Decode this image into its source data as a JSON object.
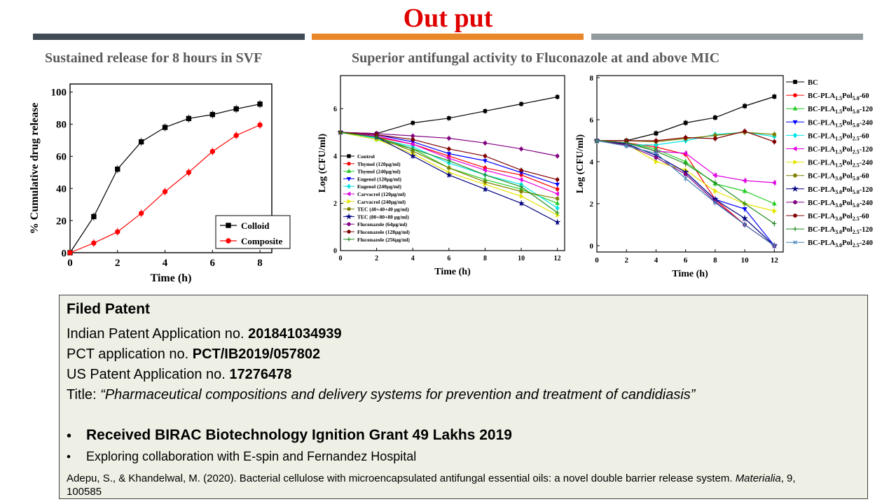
{
  "header": {
    "title": "Out put",
    "title_color": "#e00000",
    "bars": [
      "#404b55",
      "#e8872a",
      "#939a9e"
    ],
    "left_subtitle": "Sustained release for 8 hours in SVF",
    "right_subtitle": "Superior antifungal activity to Fluconazole at and above MIC"
  },
  "chart_data": [
    {
      "type": "line",
      "title": "",
      "xlabel": "Time (h)",
      "ylabel": "% Cumulative drug release",
      "xlim": [
        0,
        8.5
      ],
      "ylim": [
        0,
        105
      ],
      "xticks": [
        "0",
        "2",
        "4",
        "6",
        "8"
      ],
      "yticks": [
        "0",
        "20",
        "40",
        "60",
        "80",
        "100"
      ],
      "legend_position": "bottom-right",
      "series": [
        {
          "name": "Colloid",
          "color": "#000000",
          "marker": "square",
          "x": [
            0,
            1,
            2,
            3,
            4,
            5,
            6,
            7,
            8
          ],
          "y": [
            0,
            22.5,
            52,
            69,
            78,
            83.5,
            86,
            89.5,
            92.5
          ]
        },
        {
          "name": "Composite",
          "color": "#ff0000",
          "marker": "circle",
          "x": [
            0,
            1,
            2,
            3,
            4,
            5,
            6,
            7,
            8
          ],
          "y": [
            0,
            6,
            13,
            24.5,
            38,
            50,
            63,
            73,
            79.5
          ]
        }
      ]
    },
    {
      "type": "line",
      "title": "",
      "xlabel": "Time (h)",
      "ylabel": "Log (CFU/ml)",
      "xlim": [
        0,
        12.4
      ],
      "ylim": [
        0,
        7.4
      ],
      "xticks": [
        "0",
        "2",
        "4",
        "6",
        "8",
        "10",
        "12"
      ],
      "yticks": [
        "0",
        "2",
        "4",
        "6"
      ],
      "legend_position": "bottom-left",
      "series": [
        {
          "name": "Control",
          "color": "#000000",
          "marker": "square",
          "x": [
            0,
            2,
            4,
            6,
            8,
            10,
            12
          ],
          "y": [
            5,
            4.95,
            5.4,
            5.6,
            5.9,
            6.2,
            6.5
          ]
        },
        {
          "name": "Thymol (120µg/ml)",
          "color": "#ff0000",
          "marker": "circle",
          "x": [
            0,
            2,
            4,
            6,
            8,
            10,
            12
          ],
          "y": [
            5,
            4.8,
            4.5,
            4.0,
            3.5,
            3.2,
            2.6
          ]
        },
        {
          "name": "Thymol (240µg/ml)",
          "color": "#22cc22",
          "marker": "triangle",
          "x": [
            0,
            2,
            4,
            6,
            8,
            10,
            12
          ],
          "y": [
            5,
            4.7,
            4.3,
            3.5,
            3.0,
            2.6,
            2.0
          ]
        },
        {
          "name": "Eugenol (120µg/ml)",
          "color": "#0000ff",
          "marker": "triangle-down",
          "x": [
            0,
            2,
            4,
            6,
            8,
            10,
            12
          ],
          "y": [
            5,
            4.9,
            4.6,
            4.1,
            3.8,
            3.3,
            2.8
          ]
        },
        {
          "name": "Eugenol (240µg/ml)",
          "color": "#00e5e5",
          "marker": "diamond",
          "x": [
            0,
            2,
            4,
            6,
            8,
            10,
            12
          ],
          "y": [
            5,
            4.75,
            4.4,
            3.7,
            3.2,
            2.8,
            1.8
          ]
        },
        {
          "name": "Carvacrol (120µg/ml)",
          "color": "#e000e0",
          "marker": "triangle-left",
          "x": [
            0,
            2,
            4,
            6,
            8,
            10,
            12
          ],
          "y": [
            5,
            4.85,
            4.5,
            3.9,
            3.4,
            3.0,
            2.4
          ]
        },
        {
          "name": "Carvacrol (240µg/ml)",
          "color": "#e5e500",
          "marker": "triangle-right",
          "x": [
            0,
            2,
            4,
            6,
            8,
            10,
            12
          ],
          "y": [
            5,
            4.7,
            4.1,
            3.3,
            2.8,
            2.3,
            1.5
          ]
        },
        {
          "name": "TEC (40+40+40 µg/ml)",
          "color": "#808000",
          "marker": "circle",
          "x": [
            0,
            2,
            4,
            6,
            8,
            10,
            12
          ],
          "y": [
            5,
            4.8,
            4.2,
            3.5,
            2.9,
            2.5,
            2.2
          ]
        },
        {
          "name": "TEC (80+80+80 µg/ml)",
          "color": "#000080",
          "marker": "star",
          "x": [
            0,
            2,
            4,
            6,
            8,
            10,
            12
          ],
          "y": [
            5,
            4.8,
            4.0,
            3.2,
            2.6,
            2.0,
            1.2
          ]
        },
        {
          "name": "Fluconazole (64µg/ml)",
          "color": "#800080",
          "marker": "circle",
          "x": [
            0,
            2,
            4,
            6,
            8,
            10,
            12
          ],
          "y": [
            5,
            4.95,
            4.85,
            4.75,
            4.55,
            4.3,
            4.0
          ]
        },
        {
          "name": "Fluconazole (128µg/ml)",
          "color": "#800000",
          "marker": "circle",
          "x": [
            0,
            2,
            4,
            6,
            8,
            10,
            12
          ],
          "y": [
            5,
            4.9,
            4.7,
            4.3,
            4.0,
            3.4,
            3.0
          ]
        },
        {
          "name": "Fluconazole (256µg/ml)",
          "color": "#228b22",
          "marker": "plus",
          "x": [
            0,
            2,
            4,
            6,
            8,
            10,
            12
          ],
          "y": [
            5,
            4.8,
            4.3,
            3.8,
            3.2,
            2.7,
            1.6
          ]
        }
      ]
    },
    {
      "type": "line",
      "title": "",
      "xlabel": "Time (h)",
      "ylabel": "Log (CFU/ml)",
      "xlim": [
        0,
        12.6
      ],
      "ylim": [
        -0.3,
        8.1
      ],
      "xticks": [
        "0",
        "2",
        "4",
        "6",
        "8",
        "10",
        "12"
      ],
      "yticks": [
        "0",
        "2",
        "4",
        "6",
        "8"
      ],
      "legend_position": "right",
      "series": [
        {
          "name": "BC",
          "color": "#000000",
          "marker": "square",
          "x": [
            0,
            2,
            4,
            6,
            8,
            10,
            12
          ],
          "y": [
            5,
            5.0,
            5.35,
            5.85,
            6.1,
            6.65,
            7.1
          ]
        },
        {
          "name": "BC-PLA",
          "sub1": "1.5",
          "mid": "Pol",
          "sub2": "5.0",
          "suffix": "-60",
          "color": "#ff0000",
          "marker": "circle",
          "x": [
            0,
            2,
            4,
            6,
            8,
            10,
            12
          ],
          "y": [
            5,
            4.9,
            4.7,
            4.35,
            2.2,
            1.0,
            0
          ]
        },
        {
          "name": "BC-PLA",
          "sub1": "1.5",
          "mid": "Pol",
          "sub2": "5.0",
          "suffix": "-120",
          "color": "#22cc22",
          "marker": "triangle",
          "x": [
            0,
            2,
            4,
            6,
            8,
            10,
            12
          ],
          "y": [
            5,
            4.9,
            4.6,
            4.0,
            2.95,
            2.6,
            2.0
          ]
        },
        {
          "name": "BC-PLA",
          "sub1": "1.5",
          "mid": "Pol",
          "sub2": "5.0",
          "suffix": "-240",
          "color": "#0000ff",
          "marker": "triangle-down",
          "x": [
            0,
            2,
            4,
            6,
            8,
            10,
            12
          ],
          "y": [
            5,
            4.85,
            4.3,
            3.5,
            2.2,
            1.75,
            0
          ]
        },
        {
          "name": "BC-PLA",
          "sub1": "1.5",
          "mid": "Pol",
          "sub2": "2.5",
          "suffix": "-60",
          "color": "#00e5e5",
          "marker": "diamond",
          "x": [
            0,
            2,
            4,
            6,
            8,
            10,
            12
          ],
          "y": [
            5,
            4.8,
            4.8,
            5.0,
            5.3,
            5.4,
            5.2
          ]
        },
        {
          "name": "BC-PLA",
          "sub1": "1.5",
          "mid": "Pol",
          "sub2": "2.5",
          "suffix": "-120",
          "color": "#e000e0",
          "marker": "triangle-left",
          "x": [
            0,
            2,
            4,
            6,
            8,
            10,
            12
          ],
          "y": [
            5,
            4.9,
            4.5,
            4.4,
            3.35,
            3.1,
            3.0
          ]
        },
        {
          "name": "BC-PLA",
          "sub1": "1.5",
          "mid": "Pol",
          "sub2": "2.5",
          "suffix": "-240",
          "color": "#e5e500",
          "marker": "triangle-right",
          "x": [
            0,
            2,
            4,
            6,
            8,
            10,
            12
          ],
          "y": [
            5,
            4.85,
            4.0,
            3.6,
            2.6,
            2.0,
            1.65
          ]
        },
        {
          "name": "BC-PLA",
          "sub1": "3.0",
          "mid": "Pol",
          "sub2": "5.0",
          "suffix": "-60",
          "color": "#808000",
          "marker": "circle",
          "x": [
            0,
            2,
            4,
            6,
            8,
            10,
            12
          ],
          "y": [
            5,
            5.0,
            4.95,
            5.1,
            5.25,
            5.4,
            5.3
          ]
        },
        {
          "name": "BC-PLA",
          "sub1": "3.0",
          "mid": "Pol",
          "sub2": "5.0",
          "suffix": "-120",
          "color": "#000080",
          "marker": "star",
          "x": [
            0,
            2,
            4,
            6,
            8,
            10,
            12
          ],
          "y": [
            5,
            4.85,
            4.3,
            3.5,
            2.2,
            1.3,
            0
          ]
        },
        {
          "name": "BC-PLA",
          "sub1": "3.0",
          "mid": "Pol",
          "sub2": "5.0",
          "suffix": "-240",
          "color": "#800080",
          "marker": "circle",
          "x": [
            0,
            2,
            4,
            6,
            8,
            10,
            12
          ],
          "y": [
            5,
            4.8,
            4.2,
            3.4,
            2.1,
            1.0,
            0
          ]
        },
        {
          "name": "BC-PLA",
          "sub1": "3.0",
          "mid": "Pol",
          "sub2": "2.5",
          "suffix": "-60",
          "color": "#800000",
          "marker": "circle",
          "x": [
            0,
            2,
            4,
            6,
            8,
            10,
            12
          ],
          "y": [
            5,
            5.0,
            5.0,
            5.15,
            5.1,
            5.45,
            4.95
          ]
        },
        {
          "name": "BC-PLA",
          "sub1": "3.0",
          "mid": "Pol",
          "sub2": "2.5",
          "suffix": "-120",
          "color": "#228b22",
          "marker": "plus",
          "x": [
            0,
            2,
            4,
            6,
            8,
            10,
            12
          ],
          "y": [
            5,
            4.9,
            4.5,
            3.9,
            3.0,
            2.0,
            1.05
          ]
        },
        {
          "name": "BC-PLA",
          "sub1": "3.0",
          "mid": "Pol",
          "sub2": "2.5",
          "suffix": "-240",
          "color": "#4682b4",
          "marker": "cross",
          "x": [
            0,
            2,
            4,
            6,
            8,
            10,
            12
          ],
          "y": [
            5,
            4.75,
            4.4,
            3.2,
            2.05,
            1.0,
            0
          ]
        }
      ]
    }
  ],
  "patent": {
    "heading": "Filed Patent",
    "indian_label": "Indian Patent Application no. ",
    "indian_value": "201841034939",
    "pct_label": "PCT application no. ",
    "pct_value": "PCT/IB2019/057802",
    "us_label": "US Patent Application no. ",
    "us_value": "17276478",
    "title_label": "Title: ",
    "title_value": "“Pharmaceutical compositions and delivery systems for prevention and treatment of candidiasis”",
    "bullets": [
      "Received BIRAC Biotechnology Ignition Grant 49 Lakhs 2019",
      "Exploring collaboration with E-spin and  Fernandez Hospital"
    ],
    "bullet_glyph": "•",
    "reference_text": "Adepu, S., & Khandelwal, M. (2020). Bacterial cellulose with microencapsulated antifungal essential oils: a novel double barrier release system. ",
    "reference_journal": "Materialia",
    "reference_tail": ", 9, 100585"
  }
}
